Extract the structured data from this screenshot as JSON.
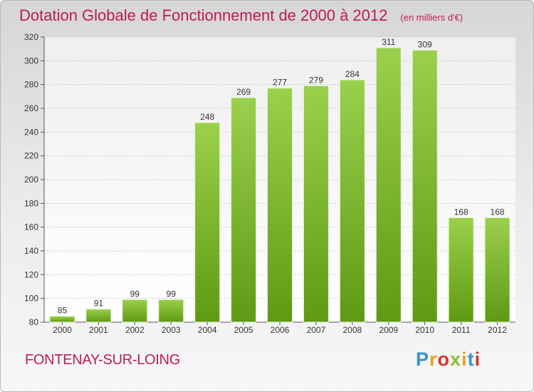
{
  "chart_data": {
    "type": "bar",
    "title": "Dotation Globale de Fonctionnement de 2000 à 2012",
    "unit": "(en milliers d'€)",
    "categories": [
      "2000",
      "2001",
      "2002",
      "2003",
      "2004",
      "2005",
      "2006",
      "2007",
      "2008",
      "2009",
      "2010",
      "2011",
      "2012"
    ],
    "values": [
      85,
      91,
      99,
      99,
      248,
      269,
      277,
      279,
      284,
      311,
      309,
      168,
      168
    ],
    "ylim": [
      80,
      320
    ],
    "yticks": [
      80,
      100,
      120,
      140,
      160,
      180,
      200,
      220,
      240,
      260,
      280,
      300,
      320
    ],
    "grid": true,
    "bar_color": "#8cc43c",
    "legend": "none"
  },
  "commune": "FONTENAY-SUR-LOING",
  "logo": {
    "text": "Proxiti",
    "colors": [
      "#3a93d1",
      "#e8a21e",
      "#d8342d",
      "#8cbd2b"
    ]
  },
  "colors": {
    "title": "#c0195a",
    "axis": "#555555",
    "grid": "#cccccc"
  }
}
